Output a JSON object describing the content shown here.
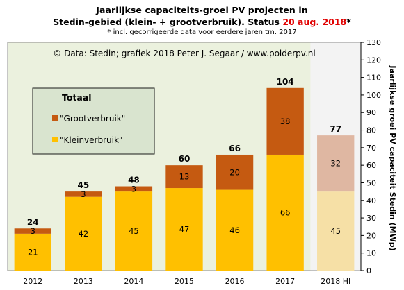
{
  "title": {
    "line1": "Jaarlijkse  capaciteits-groei PV projecten in",
    "line2_main": "Stedin-gebied (klein-  + grootverbruik).  Status ",
    "line2_date": "20 aug. 2018",
    "line2_star": "*",
    "footnote": "* incl. gecorrigeerde data voor eerdere jaren tm. 2017"
  },
  "credit": "© Data: Stedin; grafiek 2018 Peter J. Segaar / www.polderpv.nl",
  "legend": {
    "title": "Totaal",
    "items": [
      {
        "label": "\"Grootverbruik\"",
        "color": "#c55a11"
      },
      {
        "label": "\"Kleinverbruik\"",
        "color": "#ffc000"
      }
    ]
  },
  "colors": {
    "klein": "#ffc000",
    "groot": "#c55a11",
    "klein_hi": "#f6e0a6",
    "groot_hi": "#dfb7a2",
    "plot_bg": "#ebf1de",
    "hi_band": "#f3f3f3"
  },
  "chart_data": {
    "type": "bar",
    "stacked": true,
    "categories": [
      "2012",
      "2013",
      "2014",
      "2015",
      "2016",
      "2017",
      "2018 HI"
    ],
    "series": [
      {
        "name": "\"Kleinverbruik\"",
        "values": [
          21,
          42,
          45,
          47,
          46,
          66,
          45
        ]
      },
      {
        "name": "\"Grootverbruik\"",
        "values": [
          3,
          3,
          3,
          13,
          20,
          38,
          32
        ]
      }
    ],
    "totals": [
      24,
      45,
      48,
      60,
      66,
      104,
      77
    ],
    "ylabel": "Jaarlijkse groei PV capaciteit Stedin (MWp)",
    "ylim": [
      0,
      130
    ],
    "yticks": [
      "0",
      "10",
      "20",
      "30",
      "40",
      "50",
      "60",
      "70",
      "80",
      "90",
      "100",
      "110",
      "120",
      "130"
    ],
    "y_axis_side": "right",
    "grid": false,
    "legend_position": "left"
  }
}
